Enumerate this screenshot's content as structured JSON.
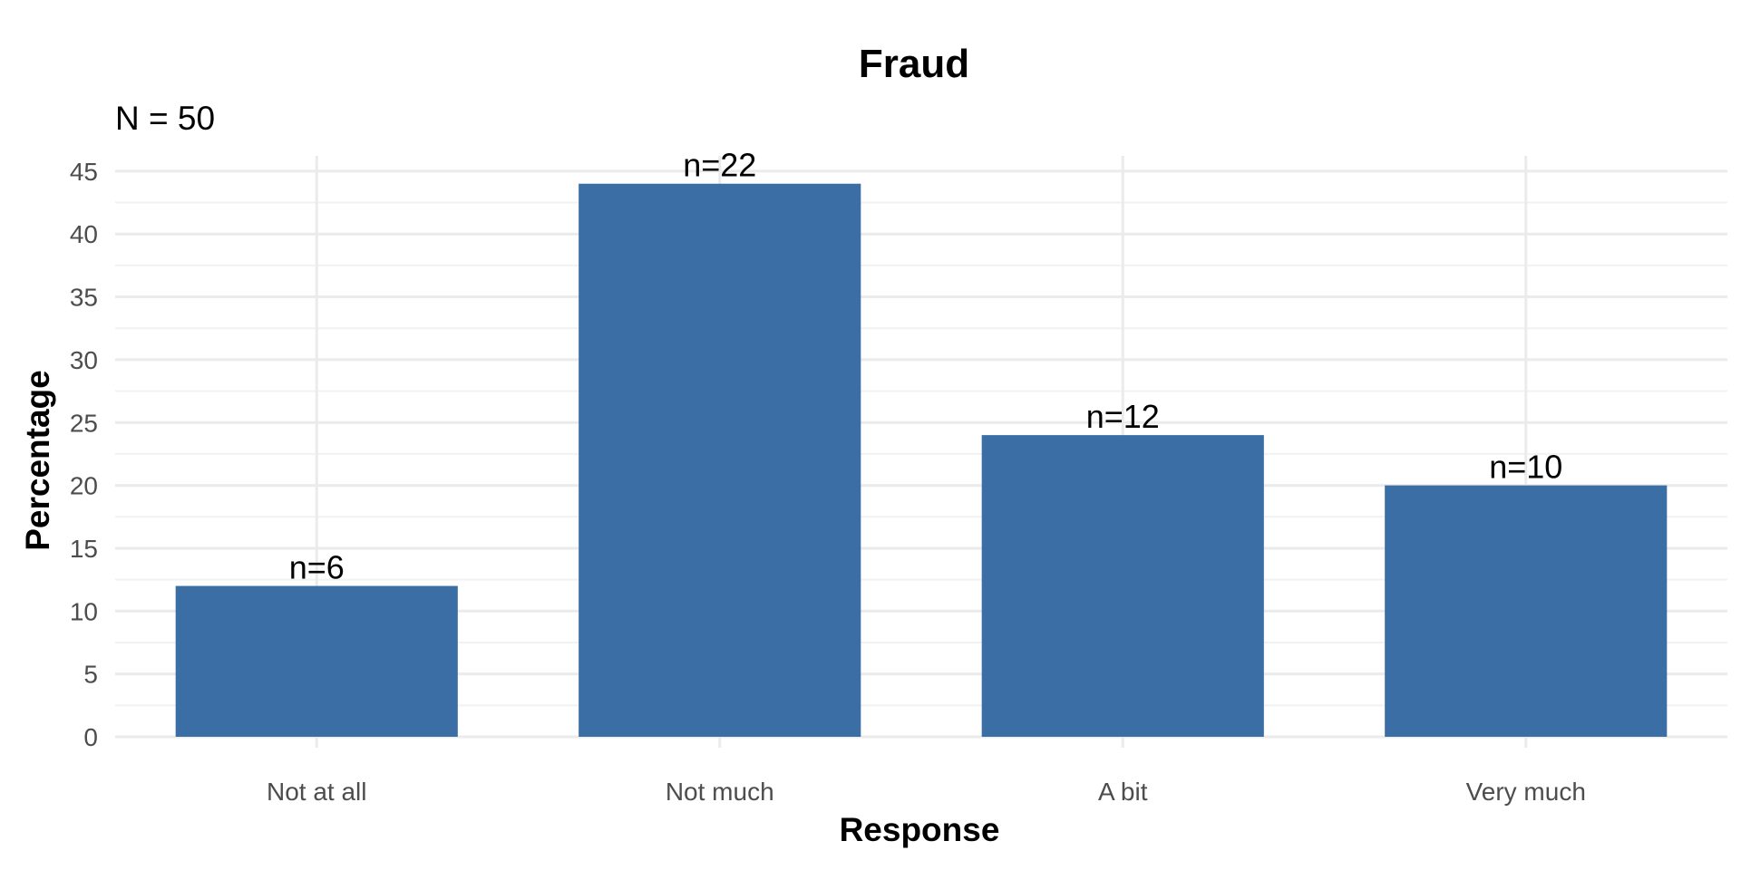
{
  "chart_data": {
    "type": "bar",
    "title": "Fraud",
    "subtitle": "N = 50",
    "xlabel": "Response",
    "ylabel": "Percentage",
    "categories": [
      "Not at all",
      "Not much",
      "A bit",
      "Very much"
    ],
    "values": [
      12,
      44,
      24,
      20
    ],
    "data_labels": [
      "n=6",
      "n=22",
      "n=12",
      "n=10"
    ],
    "yticks": [
      0,
      5,
      10,
      15,
      20,
      25,
      30,
      35,
      40,
      45
    ],
    "ylim": [
      0,
      46
    ],
    "grid": true,
    "legend": "none",
    "bar_color": "#3A6EA5"
  }
}
